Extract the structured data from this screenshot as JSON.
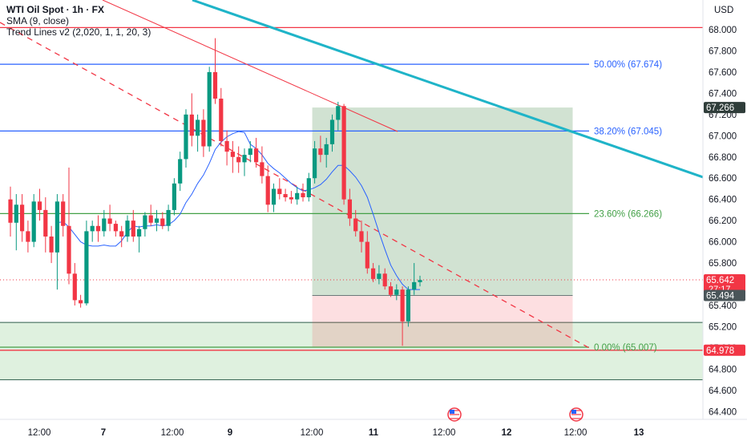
{
  "header": {
    "title": "WTI Oil Spot · 1h · FX",
    "indicator_1": "SMA (9, close)",
    "indicator_2": "Trend Lines v2 (2,020, 1, 1, 20, 3)"
  },
  "chart_data": {
    "type": "candlestick",
    "symbol": "WTI Oil Spot · 1h · FX",
    "currency_label": "USD",
    "y_ticks": [
      "68.000",
      "67.800",
      "67.600",
      "67.400",
      "67.200",
      "67.000",
      "66.800",
      "66.600",
      "66.400",
      "66.200",
      "66.000",
      "65.800",
      "65.600",
      "65.400",
      "65.200",
      "65.000",
      "64.800",
      "64.600",
      "64.400"
    ],
    "ylim": [
      64.4,
      68.0
    ],
    "x_ticks": [
      "12:00",
      "7",
      "12:00",
      "9",
      "12:00",
      "11",
      "12:00",
      "12",
      "12:00",
      "13"
    ],
    "candles_ohlc": [
      [
        66.4,
        66.52,
        66.05,
        66.18
      ],
      [
        66.18,
        66.45,
        65.92,
        66.35
      ],
      [
        66.35,
        66.45,
        66.0,
        66.1
      ],
      [
        66.1,
        66.2,
        65.9,
        66.0
      ],
      [
        66.0,
        66.45,
        65.95,
        66.38
      ],
      [
        66.38,
        66.5,
        66.2,
        66.3
      ],
      [
        66.3,
        66.42,
        65.9,
        66.05
      ],
      [
        66.05,
        66.15,
        65.8,
        65.9
      ],
      [
        65.9,
        66.45,
        65.55,
        66.38
      ],
      [
        66.38,
        66.45,
        66.05,
        66.15
      ],
      [
        66.15,
        66.7,
        65.6,
        65.7
      ],
      [
        65.7,
        65.8,
        65.4,
        65.45
      ],
      [
        65.45,
        65.5,
        65.38,
        65.42
      ],
      [
        65.42,
        66.2,
        65.4,
        66.1
      ],
      [
        66.1,
        66.2,
        66.0,
        66.15
      ],
      [
        66.15,
        66.25,
        66.0,
        66.1
      ],
      [
        66.1,
        66.3,
        66.05,
        66.22
      ],
      [
        66.22,
        66.35,
        66.1,
        66.17
      ],
      [
        66.17,
        66.2,
        66.05,
        66.1
      ],
      [
        66.1,
        66.15,
        65.95,
        66.05
      ],
      [
        66.05,
        66.25,
        66.0,
        66.2
      ],
      [
        66.2,
        66.3,
        66.0,
        66.05
      ],
      [
        66.05,
        66.15,
        65.9,
        66.12
      ],
      [
        66.12,
        66.28,
        66.05,
        66.25
      ],
      [
        66.25,
        66.35,
        66.15,
        66.18
      ],
      [
        66.18,
        66.3,
        66.1,
        66.22
      ],
      [
        66.22,
        66.28,
        66.12,
        66.15
      ],
      [
        66.15,
        66.35,
        66.1,
        66.3
      ],
      [
        66.3,
        66.6,
        66.25,
        66.55
      ],
      [
        66.55,
        66.85,
        66.48,
        66.78
      ],
      [
        66.78,
        67.25,
        66.7,
        67.2
      ],
      [
        67.2,
        67.4,
        66.9,
        67.0
      ],
      [
        67.0,
        67.2,
        66.85,
        67.15
      ],
      [
        67.15,
        67.25,
        66.8,
        66.9
      ],
      [
        66.9,
        67.65,
        66.85,
        67.6
      ],
      [
        67.6,
        67.92,
        67.3,
        67.35
      ],
      [
        67.35,
        67.45,
        66.9,
        66.95
      ],
      [
        66.95,
        67.05,
        66.72,
        66.85
      ],
      [
        66.85,
        66.95,
        66.65,
        66.8
      ],
      [
        66.8,
        66.9,
        66.65,
        66.75
      ],
      [
        66.75,
        66.88,
        66.62,
        66.82
      ],
      [
        66.82,
        66.95,
        66.75,
        66.88
      ],
      [
        66.88,
        66.98,
        66.7,
        66.75
      ],
      [
        66.75,
        66.9,
        66.55,
        66.62
      ],
      [
        66.62,
        66.72,
        66.28,
        66.35
      ],
      [
        66.35,
        66.55,
        66.28,
        66.5
      ],
      [
        66.5,
        66.6,
        66.4,
        66.45
      ],
      [
        66.45,
        66.5,
        66.38,
        66.42
      ],
      [
        66.42,
        66.48,
        66.36,
        66.4
      ],
      [
        66.4,
        66.52,
        66.35,
        66.46
      ],
      [
        66.46,
        66.55,
        66.38,
        66.42
      ],
      [
        66.42,
        66.65,
        66.38,
        66.6
      ],
      [
        66.6,
        66.95,
        66.55,
        66.88
      ],
      [
        66.88,
        67.0,
        66.75,
        66.82
      ],
      [
        66.82,
        66.98,
        66.7,
        66.92
      ],
      [
        66.92,
        67.2,
        66.85,
        67.15
      ],
      [
        67.15,
        67.32,
        67.05,
        67.28
      ],
      [
        67.28,
        67.3,
        66.35,
        66.4
      ],
      [
        66.4,
        66.5,
        66.15,
        66.22
      ],
      [
        66.22,
        66.3,
        66.05,
        66.1
      ],
      [
        66.1,
        66.2,
        65.9,
        66.0
      ],
      [
        66.0,
        66.1,
        65.7,
        65.75
      ],
      [
        65.75,
        65.8,
        65.62,
        65.65
      ],
      [
        65.65,
        65.78,
        65.6,
        65.7
      ],
      [
        65.7,
        65.75,
        65.55,
        65.58
      ],
      [
        65.58,
        65.62,
        65.48,
        65.5
      ],
      [
        65.5,
        65.6,
        65.45,
        65.55
      ],
      [
        65.55,
        65.58,
        65.02,
        65.25
      ],
      [
        65.25,
        65.58,
        65.2,
        65.55
      ],
      [
        65.55,
        65.8,
        65.5,
        65.62
      ],
      [
        65.62,
        65.68,
        65.58,
        65.64
      ]
    ],
    "sma": {
      "name": "SMA (9, close)",
      "values": [
        null,
        null,
        null,
        null,
        null,
        null,
        null,
        null,
        66.18,
        66.19,
        66.14,
        66.07,
        66.0,
        65.97,
        65.96,
        65.96,
        65.97,
        65.96,
        65.96,
        66.01,
        66.09,
        66.15,
        66.14,
        66.15,
        66.15,
        66.16,
        66.15,
        66.16,
        66.2,
        66.26,
        66.37,
        66.45,
        66.55,
        66.63,
        66.74,
        66.87,
        66.94,
        66.99,
        67.02,
        67.04,
        67.03,
        66.92,
        66.88,
        66.82,
        66.74,
        66.69,
        66.65,
        66.6,
        66.55,
        66.51,
        66.48,
        66.49,
        66.51,
        66.54,
        66.59,
        66.66,
        66.72,
        66.72,
        66.67,
        66.61,
        66.53,
        66.42,
        66.26,
        66.09,
        65.93,
        65.78,
        65.68,
        65.6,
        65.55,
        65.55,
        65.55
      ]
    },
    "fibonacci": [
      {
        "label": "50.00% (67.674)",
        "value": 67.674
      },
      {
        "label": "38.20% (67.045)",
        "value": 67.045
      },
      {
        "label": "23.60% (66.266)",
        "value": 66.266
      },
      {
        "label": "0.00% (65.007)",
        "value": 65.007
      }
    ],
    "horizontal_levels": [
      68.02,
      64.978
    ],
    "price_badges": [
      {
        "label": "67.266",
        "value": 67.266,
        "color": "#2f3d3a",
        "text_color": "#ffffff"
      },
      {
        "label": "65.642",
        "value": 65.642,
        "color": "#f23645",
        "text_color": "#ffffff",
        "sub_label": "27:17"
      },
      {
        "label": "65.494",
        "value": 65.494,
        "color": "#4a5559",
        "text_color": "#ffffff"
      },
      {
        "label": "64.978",
        "value": 64.978,
        "color": "#f23645",
        "text_color": "#ffffff"
      }
    ],
    "position": {
      "entry": 65.494,
      "take_profit": 67.266,
      "stop_loss": 65.007,
      "start_index": 52,
      "end_index": 95
    },
    "support_zone": [
      64.7,
      65.24
    ],
    "colors": {
      "up": "#089981",
      "down": "#f23645",
      "sma": "#2962ff",
      "fib_blue": "#2962ff",
      "fib_green": "#43a047",
      "teal_trendline": "#1fb4c8",
      "red_line": "#f23645"
    },
    "event_icons": [
      "us-flag-icon",
      "us-flag-icon"
    ]
  }
}
